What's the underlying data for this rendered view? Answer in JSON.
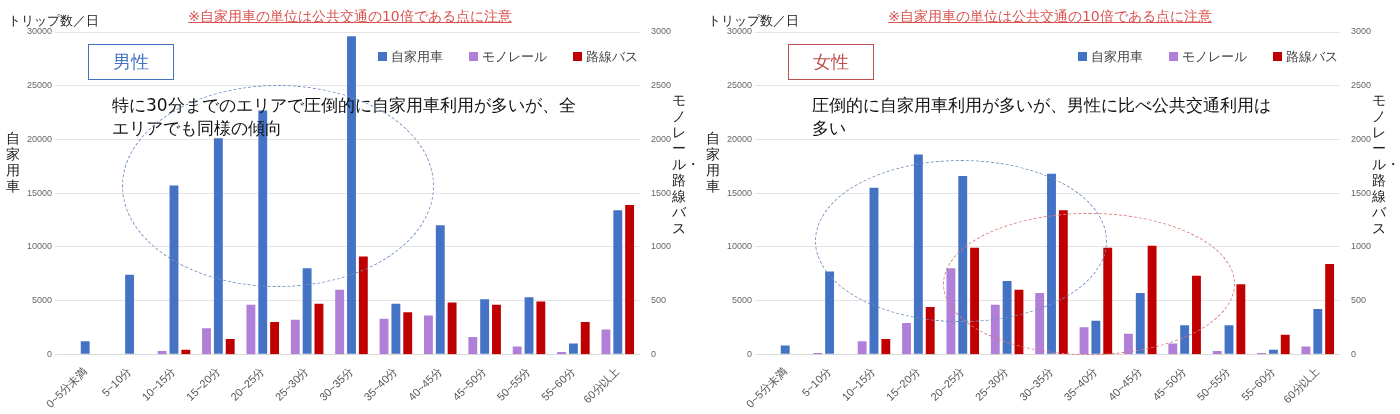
{
  "chart_data": [
    {
      "type": "bar",
      "title": "※自家用車の単位は公共交通の10倍である点に注意",
      "ylabel": "自家用車",
      "y2label": "モノレール・路線バス",
      "annotations": [
        "トリップ数／日",
        "男性",
        "特に30分までのエリアで圧倒的に自家用車利用が多いが、全エリアでも同様の傾向"
      ],
      "categories": [
        "0~5分未満",
        "5~10分",
        "10~15分",
        "15~20分",
        "20~25分",
        "25~30分",
        "30~35分",
        "35~40分",
        "40~45分",
        "45~50分",
        "50~55分",
        "55~60分",
        "60分以上"
      ],
      "series": [
        {
          "name": "モノレール",
          "color": "#b07fd8",
          "axis": "y2",
          "values": [
            0,
            0,
            30,
            240,
            460,
            320,
            600,
            330,
            360,
            160,
            70,
            20,
            230
          ]
        },
        {
          "name": "自家用車",
          "color": "#4472c4",
          "axis": "y",
          "values": [
            1200,
            7400,
            15700,
            20100,
            22700,
            8000,
            29600,
            4700,
            12000,
            5100,
            5300,
            1000,
            13400
          ]
        },
        {
          "name": "路線バス",
          "color": "#c00000",
          "axis": "y2",
          "values": [
            0,
            0,
            40,
            140,
            300,
            470,
            910,
            390,
            480,
            460,
            490,
            300,
            1390
          ]
        }
      ],
      "ylim": [
        0,
        30000
      ],
      "yticks": [
        0,
        5000,
        10000,
        15000,
        20000,
        25000,
        30000
      ],
      "y2lim": [
        0,
        3000
      ],
      "y2ticks": [
        0,
        500,
        1000,
        1500,
        2000,
        2500,
        3000
      ],
      "grid": "y",
      "legend": "top right"
    },
    {
      "type": "bar",
      "title": "※自家用車の単位は公共交通の10倍である点に注意",
      "ylabel": "自家用車",
      "y2label": "モノレール・路線バス",
      "annotations": [
        "トリップ数／日",
        "女性",
        "圧倒的に自家用車利用が多いが、男性に比べ公共交通利用は多い"
      ],
      "categories": [
        "0~5分未満",
        "5~10分",
        "10~15分",
        "15~20分",
        "20~25分",
        "25~30分",
        "30~35分",
        "35~40分",
        "40~45分",
        "45~50分",
        "50~55分",
        "55~60分",
        "60分以上"
      ],
      "series": [
        {
          "name": "モノレール",
          "color": "#b07fd8",
          "axis": "y2",
          "values": [
            0,
            10,
            120,
            290,
            800,
            460,
            570,
            250,
            190,
            100,
            30,
            10,
            70
          ]
        },
        {
          "name": "自家用車",
          "color": "#4472c4",
          "axis": "y",
          "values": [
            800,
            7700,
            15500,
            18600,
            16600,
            6800,
            16800,
            3100,
            5700,
            2700,
            2700,
            400,
            4200
          ]
        },
        {
          "name": "路線バス",
          "color": "#c00000",
          "axis": "y2",
          "values": [
            0,
            0,
            140,
            440,
            990,
            600,
            1340,
            990,
            1010,
            730,
            650,
            180,
            840
          ]
        }
      ],
      "ylim": [
        0,
        30000
      ],
      "yticks": [
        0,
        5000,
        10000,
        15000,
        20000,
        25000,
        30000
      ],
      "y2lim": [
        0,
        3000
      ],
      "y2ticks": [
        0,
        500,
        1000,
        1500,
        2000,
        2500,
        3000
      ],
      "grid": "y",
      "legend": "top right"
    }
  ]
}
